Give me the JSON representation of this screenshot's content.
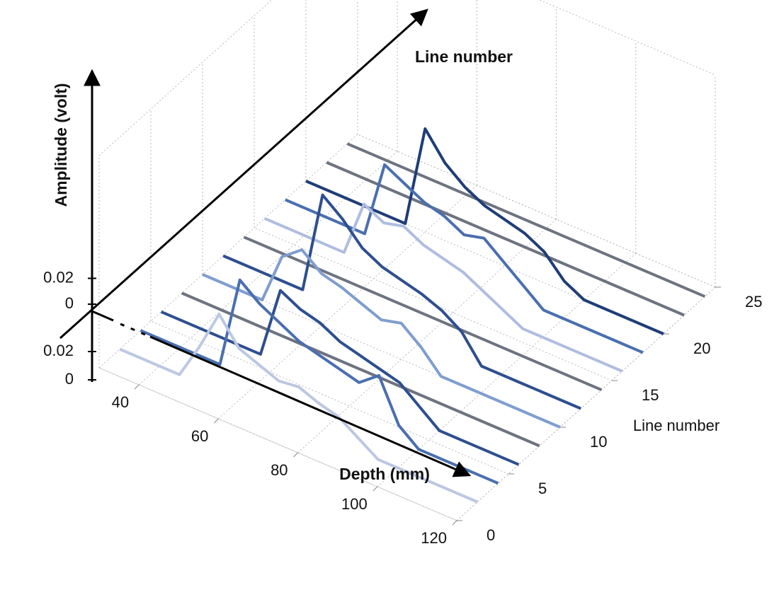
{
  "chart_data": {
    "type": "waterfall3d",
    "z_label": "Amplitude (volt)",
    "depth_arrow_label": "Line number",
    "x_label": "Depth (mm)",
    "y_label": "Line number",
    "x": [
      30,
      35,
      40,
      45,
      50,
      55,
      60,
      65,
      70,
      75,
      80,
      85,
      90,
      95,
      100,
      105,
      110,
      115,
      120
    ],
    "xlim": [
      30,
      120
    ],
    "xticks": [
      40,
      60,
      80,
      100,
      120
    ],
    "ylim": [
      0,
      25
    ],
    "yticks": [
      0,
      5,
      10,
      15,
      20,
      25
    ],
    "zlim": [
      0,
      0.04
    ],
    "zticks": [
      0.02,
      0
    ],
    "zticks_lower": [
      0.02,
      0
    ],
    "grid": true,
    "traces": [
      {
        "line": 2,
        "color": "#bcc8e2",
        "values": [
          0,
          0,
          0,
          0,
          0.014,
          0.03,
          0.02,
          0.017,
          0.014,
          0.015,
          0.012,
          0.01,
          0.005,
          0,
          0,
          0,
          0,
          0,
          0
        ]
      },
      {
        "line": 4,
        "color": "#4a6fb0",
        "values": [
          0,
          0,
          0,
          0,
          0,
          0.036,
          0.03,
          0.026,
          0.022,
          0.02,
          0.018,
          0.016,
          0.022,
          0.006,
          0,
          0,
          0,
          0,
          0
        ]
      },
      {
        "line": 6,
        "color": "#2e4f8f",
        "values": [
          0,
          0,
          0,
          0,
          0,
          0,
          0.028,
          0.024,
          0.022,
          0.018,
          0.016,
          0.014,
          0.012,
          0.006,
          0,
          0,
          0,
          0,
          0
        ]
      },
      {
        "line": 8,
        "color": "#6d7380",
        "values": [
          0,
          0,
          0,
          0,
          0,
          0,
          0,
          0,
          0,
          0,
          0,
          0,
          0,
          0,
          0,
          0,
          0,
          0,
          0
        ]
      },
      {
        "line": 10,
        "color": "#7f9dcf",
        "values": [
          0,
          0,
          0,
          0,
          0.02,
          0.026,
          0.02,
          0.018,
          0.015,
          0.012,
          0.014,
          0.008,
          0,
          0,
          0,
          0,
          0,
          0,
          0
        ]
      },
      {
        "line": 12,
        "color": "#2e4f8f",
        "values": [
          0,
          0,
          0,
          0,
          0,
          0.04,
          0.034,
          0.026,
          0.022,
          0.02,
          0.018,
          0.015,
          0.01,
          0,
          0,
          0,
          0,
          0,
          0
        ]
      },
      {
        "line": 14,
        "color": "#6d7380",
        "values": [
          0,
          0,
          0,
          0,
          0,
          0,
          0,
          0,
          0,
          0,
          0,
          0,
          0,
          0,
          0,
          0,
          0,
          0,
          0
        ]
      },
      {
        "line": 16,
        "color": "#aebde0",
        "values": [
          0,
          0,
          0,
          0,
          0,
          0.022,
          0.018,
          0.02,
          0.016,
          0.014,
          0.012,
          0.008,
          0.004,
          0,
          0,
          0,
          0,
          0,
          0
        ]
      },
      {
        "line": 18,
        "color": "#4a6fb0",
        "values": [
          0,
          0,
          0,
          0,
          0,
          0.03,
          0.026,
          0.022,
          0.02,
          0.016,
          0.018,
          0.012,
          0.006,
          0,
          0,
          0,
          0,
          0,
          0
        ]
      },
      {
        "line": 20,
        "color": "#1f3d78",
        "values": [
          0,
          0,
          0,
          0,
          0,
          0,
          0.04,
          0.03,
          0.024,
          0.02,
          0.018,
          0.016,
          0.012,
          0.004,
          0,
          0,
          0,
          0,
          0
        ]
      },
      {
        "line": 22,
        "color": "#6d7380",
        "values": [
          0,
          0,
          0,
          0,
          0,
          0,
          0,
          0,
          0,
          0,
          0,
          0,
          0,
          0,
          0,
          0,
          0,
          0,
          0
        ]
      },
      {
        "line": 24,
        "color": "#6d7380",
        "values": [
          0,
          0,
          0,
          0,
          0,
          0,
          0,
          0,
          0,
          0,
          0,
          0,
          0,
          0,
          0,
          0,
          0,
          0,
          0
        ]
      }
    ]
  }
}
